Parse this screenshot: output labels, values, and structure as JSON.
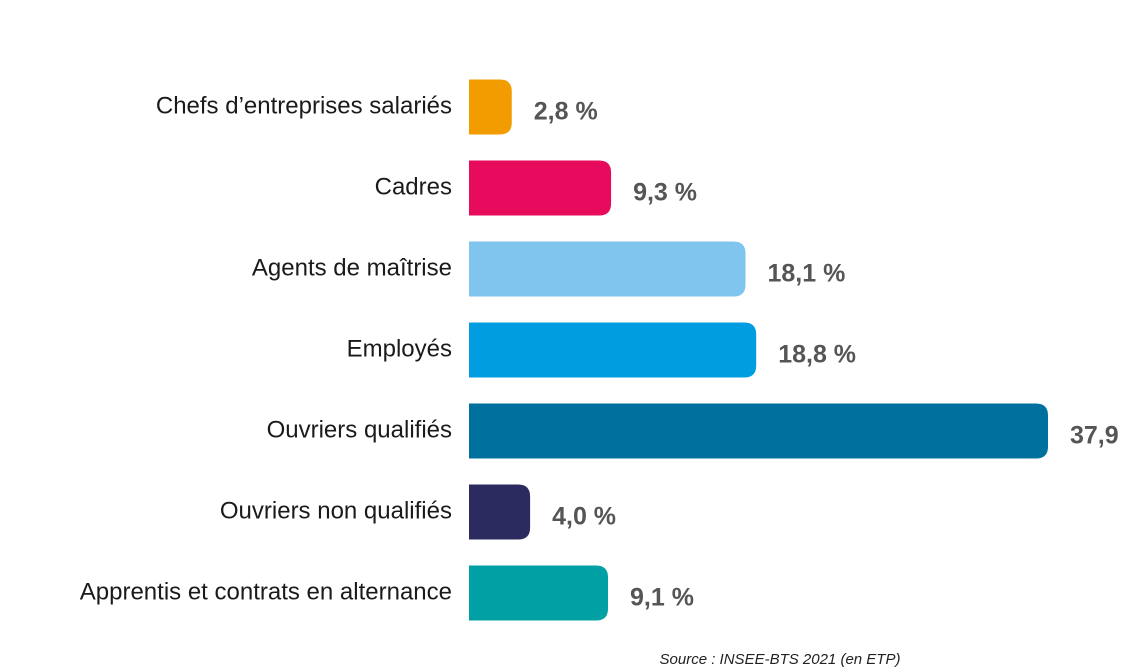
{
  "chart_data": {
    "type": "bar",
    "orientation": "horizontal",
    "categories": [
      "Chefs d’entreprises salariés",
      "Cadres",
      "Agents de maîtrise",
      "Employés",
      "Ouvriers qualifiés",
      "Ouvriers non qualifiés",
      "Apprentis et contrats en alternance"
    ],
    "values": [
      2.8,
      9.3,
      18.1,
      18.8,
      37.9,
      4.0,
      9.1
    ],
    "value_labels": [
      "2,8 %",
      "9,3 %",
      "18,1 %",
      "18,8 %",
      "37,9",
      "4,0 %",
      "9,1 %"
    ],
    "colors": [
      "#f39c00",
      "#e60b5c",
      "#7fc5ee",
      "#009ee0",
      "#00709e",
      "#2b2b5f",
      "#00a0a4"
    ],
    "annotation": "Source : INSEE-BTS 2021 (en ETP)"
  }
}
